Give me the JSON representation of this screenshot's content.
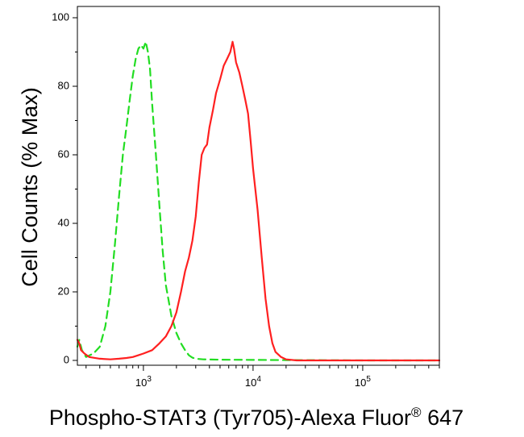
{
  "chart_data": {
    "type": "line",
    "xlabel": "Phospho-STAT3 (Tyr705)-Alexa Fluor",
    "xlabel_sup": "®",
    "xlabel_suffix": "647",
    "ylabel": "Cell Counts (% Max)",
    "x_scale": "log",
    "xlim": [
      250,
      500000
    ],
    "ylim": [
      0,
      100
    ],
    "y_ticks": [
      0,
      20,
      40,
      60,
      80,
      100
    ],
    "y_tick_labels": [
      "0",
      "20",
      "40",
      "60",
      "80",
      "100"
    ],
    "x_major_ticks": [
      1000,
      10000,
      100000
    ],
    "x_tick_labels": [
      {
        "base": "10",
        "exp": "3"
      },
      {
        "base": "10",
        "exp": "4"
      },
      {
        "base": "10",
        "exp": "5"
      }
    ],
    "grid": false,
    "legend": "none",
    "series": [
      {
        "color": "#22dd22",
        "dash": true,
        "x": [
          250,
          260,
          275,
          300,
          350,
          400,
          450,
          500,
          550,
          600,
          650,
          700,
          750,
          800,
          850,
          900,
          950,
          1000,
          1050,
          1100,
          1150,
          1200,
          1300,
          1400,
          1500,
          1600,
          1800,
          2000,
          2200,
          2400,
          2600,
          2800,
          3000,
          3500,
          5000,
          20000,
          100000,
          500000
        ],
        "y": [
          4,
          6,
          3,
          1,
          2,
          4,
          10,
          20,
          34,
          48,
          60,
          68,
          76,
          83,
          88,
          91,
          92,
          91,
          93,
          90,
          85,
          75,
          60,
          45,
          32,
          22,
          13,
          8,
          5,
          3,
          1.5,
          0.8,
          0.5,
          0.3,
          0.2,
          0.1,
          0,
          0
        ]
      },
      {
        "color": "#ff2020",
        "dash": false,
        "x": [
          250,
          260,
          270,
          290,
          320,
          400,
          500,
          600,
          700,
          800,
          900,
          1000,
          1200,
          1400,
          1600,
          1800,
          2000,
          2200,
          2400,
          2600,
          2800,
          3000,
          3200,
          3400,
          3600,
          3800,
          4000,
          4300,
          4600,
          5000,
          5400,
          5800,
          6200,
          6500,
          6700,
          7000,
          7500,
          8000,
          8500,
          9000,
          9500,
          10000,
          11000,
          12000,
          13000,
          14000,
          15000,
          16000,
          18000,
          20000,
          25000,
          50000,
          500000
        ],
        "y": [
          6,
          5,
          3,
          2,
          1,
          0.5,
          0.3,
          0.5,
          0.7,
          1,
          1.5,
          2,
          3,
          5,
          7,
          10,
          14,
          20,
          26,
          30,
          35,
          42,
          52,
          60,
          62,
          63,
          68,
          73,
          78,
          82,
          86,
          88,
          90,
          93,
          91,
          87,
          84,
          80,
          76,
          72,
          64,
          56,
          44,
          30,
          18,
          10,
          5,
          2.5,
          1,
          0.3,
          0,
          0,
          0
        ]
      }
    ]
  }
}
